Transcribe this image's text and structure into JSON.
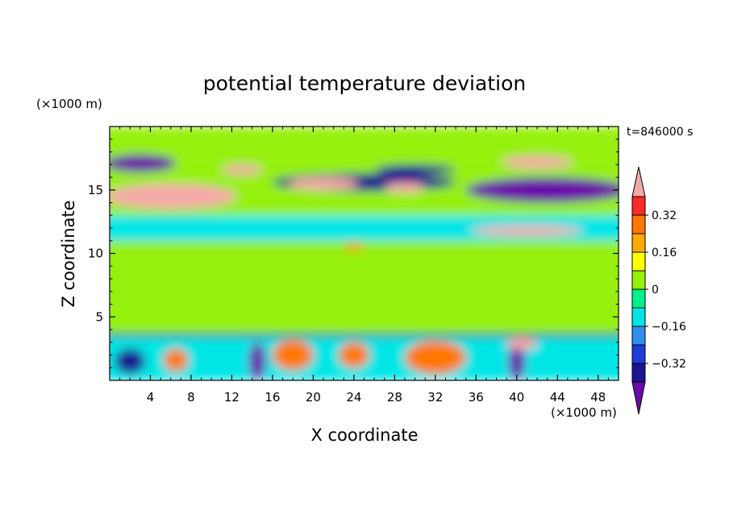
{
  "chart_data": {
    "type": "heatmap",
    "title": "potential temperature deviation",
    "xlabel": "X coordinate",
    "ylabel": "Z coordinate",
    "x_unit": "(×1000 m)",
    "y_unit": "(×1000 m)",
    "time_label": "t=846000 s",
    "xlim": [
      0,
      50
    ],
    "ylim": [
      0,
      20
    ],
    "x_ticks": [
      4,
      8,
      12,
      16,
      20,
      24,
      28,
      32,
      36,
      40,
      44,
      48
    ],
    "y_ticks": [
      5,
      10,
      15
    ],
    "colorbar": {
      "levels": [
        -0.48,
        -0.4,
        -0.32,
        -0.24,
        -0.16,
        -0.08,
        0,
        0.08,
        0.16,
        0.24,
        0.32,
        0.4
      ],
      "tick_labels": [
        "0.32",
        "0.16",
        "0",
        "−0.16",
        "−0.32"
      ],
      "tick_values": [
        0.32,
        0.16,
        0,
        -0.16,
        -0.32
      ],
      "colors": [
        "#6a0aa8",
        "#1c1490",
        "#1e3cd8",
        "#2e8ef0",
        "#00e6e6",
        "#00f08c",
        "#96f00a",
        "#ffff00",
        "#ffaa00",
        "#ff7800",
        "#ff2828",
        "#f5a8a8"
      ]
    },
    "features": [
      {
        "type": "layer",
        "x": [
          0,
          50
        ],
        "z": [
          0,
          3.4
        ],
        "value": -0.1
      },
      {
        "type": "layer",
        "x": [
          0,
          50
        ],
        "z": [
          3.4,
          3.7
        ],
        "value": -0.35
      },
      {
        "type": "layer",
        "x": [
          0,
          50
        ],
        "z": [
          3.7,
          11.0
        ],
        "value": 0.02
      },
      {
        "type": "layer",
        "x": [
          0,
          50
        ],
        "z": [
          11.0,
          11.4
        ],
        "value": -0.1
      },
      {
        "type": "layer",
        "x": [
          0,
          50
        ],
        "z": [
          11.4,
          13.0
        ],
        "value": -0.12
      },
      {
        "type": "layer",
        "x": [
          0,
          50
        ],
        "z": [
          13.0,
          17.5
        ],
        "value": 0.02
      },
      {
        "type": "layer",
        "x": [
          0,
          50
        ],
        "z": [
          17.5,
          20.0
        ],
        "value": 0.05
      },
      {
        "type": "blob",
        "x": 6,
        "z": 14.5,
        "rx": 6.5,
        "rz": 1.0,
        "value": 0.45
      },
      {
        "type": "blob",
        "x": 25,
        "z": 15.6,
        "rx": 9,
        "rz": 0.7,
        "value": -0.38
      },
      {
        "type": "blob",
        "x": 43,
        "z": 15.0,
        "rx": 8,
        "rz": 1.0,
        "value": -0.45
      },
      {
        "type": "blob",
        "x": 3,
        "z": 17.1,
        "rx": 3.5,
        "rz": 0.7,
        "value": -0.42
      },
      {
        "type": "blob",
        "x": 21,
        "z": 15.5,
        "rx": 3.5,
        "rz": 0.5,
        "value": 0.42
      },
      {
        "type": "blob",
        "x": 29,
        "z": 15.2,
        "rx": 2.0,
        "rz": 0.4,
        "value": 0.42
      },
      {
        "type": "blob",
        "x": 42,
        "z": 17.2,
        "rx": 3.5,
        "rz": 0.5,
        "value": 0.42
      },
      {
        "type": "blob",
        "x": 13,
        "z": 16.6,
        "rx": 2.0,
        "rz": 0.4,
        "value": 0.42
      },
      {
        "type": "blob",
        "x": 30,
        "z": 16.6,
        "rx": 4.0,
        "rz": 0.4,
        "value": -0.38
      },
      {
        "type": "blob",
        "x": 41,
        "z": 11.8,
        "rx": 5.5,
        "rz": 0.4,
        "value": 0.42
      },
      {
        "type": "blob",
        "x": 24,
        "z": 10.5,
        "rx": 1.0,
        "rz": 0.25,
        "value": 0.3
      },
      {
        "type": "blob",
        "x": 18,
        "z": 2.0,
        "rx": 2.0,
        "rz": 1.2,
        "value": 0.25
      },
      {
        "type": "blob",
        "x": 32,
        "z": 1.8,
        "rx": 3.0,
        "rz": 1.3,
        "value": 0.3
      },
      {
        "type": "blob",
        "x": 14.5,
        "z": 1.5,
        "rx": 0.8,
        "rz": 1.5,
        "value": -0.42
      },
      {
        "type": "blob",
        "x": 40,
        "z": 1.5,
        "rx": 0.8,
        "rz": 1.5,
        "value": -0.42
      },
      {
        "type": "blob",
        "x": 2,
        "z": 1.5,
        "rx": 1.5,
        "rz": 1.0,
        "value": -0.35
      },
      {
        "type": "blob",
        "x": 40.5,
        "z": 2.9,
        "rx": 1.5,
        "rz": 0.5,
        "value": 0.42
      },
      {
        "type": "blob",
        "x": 6.5,
        "z": 1.6,
        "rx": 1.2,
        "rz": 0.9,
        "value": 0.3
      },
      {
        "type": "blob",
        "x": 24,
        "z": 2.0,
        "rx": 1.5,
        "rz": 1.0,
        "value": 0.25
      }
    ]
  }
}
